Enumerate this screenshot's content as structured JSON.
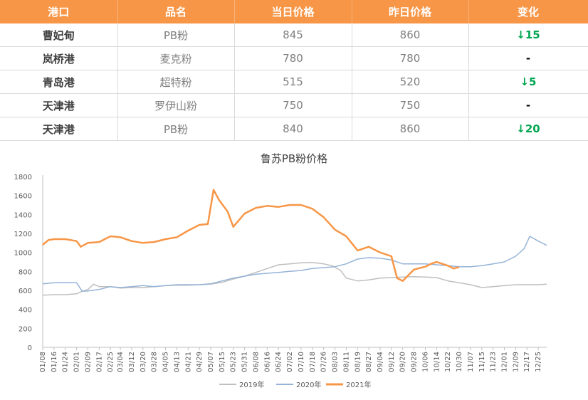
{
  "table": {
    "headers": [
      "港口",
      "品名",
      "当日价格",
      "昨日价格",
      "变化"
    ],
    "rows": [
      {
        "port": "曹妃甸",
        "product": "PB粉",
        "today": "845",
        "yesterday": "860",
        "change": "↓15"
      },
      {
        "port": "岚桥港",
        "product": "麦克粉",
        "today": "780",
        "yesterday": "780",
        "change": "-"
      },
      {
        "port": "青岛港",
        "product": "超特粉",
        "today": "515",
        "yesterday": "520",
        "change": "↓5"
      },
      {
        "port": "天津港",
        "product": "罗伊山粉",
        "today": "750",
        "yesterday": "750",
        "change": "-"
      },
      {
        "port": "天津港",
        "product": "PB粉",
        "today": "840",
        "yesterday": "860",
        "change": "↓20"
      }
    ]
  },
  "colors": {
    "header_bg": "#F79646",
    "down": "#00A651",
    "series_2019": "#BFBFBF",
    "series_2020": "#95B3D7",
    "series_2021": "#F79646"
  },
  "chart_data": {
    "type": "line",
    "title": "鲁苏PB粉价格",
    "xlabel": "",
    "ylabel": "",
    "ylim": [
      0,
      1800
    ],
    "yticks": [
      0,
      200,
      400,
      600,
      800,
      1000,
      1200,
      1400,
      1600,
      1800
    ],
    "grid": false,
    "legend_position": "bottom",
    "x_range": [
      "01/08",
      "12/31"
    ],
    "x_tick_labels": [
      "01/08",
      "01/16",
      "01/24",
      "02/01",
      "02/09",
      "02/17",
      "02/25",
      "03/04",
      "03/12",
      "03/20",
      "03/28",
      "04/05",
      "04/13",
      "04/21",
      "04/29",
      "05/07",
      "05/15",
      "05/23",
      "05/31",
      "06/08",
      "06/16",
      "06/24",
      "07/02",
      "07/10",
      "07/18",
      "07/26",
      "08/03",
      "08/11",
      "08/19",
      "08/27",
      "09/04",
      "09/12",
      "09/20",
      "09/28",
      "10/06",
      "10/14",
      "10/22",
      "10/30",
      "11/07",
      "11/15",
      "11/23",
      "12/01",
      "12/09",
      "12/17",
      "12/25"
    ],
    "series": [
      {
        "name": "2019年",
        "points": [
          [
            "01/08",
            550
          ],
          [
            "01/16",
            555
          ],
          [
            "01/24",
            555
          ],
          [
            "02/01",
            565
          ],
          [
            "02/05",
            590
          ],
          [
            "02/09",
            610
          ],
          [
            "02/13",
            665
          ],
          [
            "02/17",
            640
          ],
          [
            "02/25",
            640
          ],
          [
            "03/04",
            625
          ],
          [
            "03/12",
            630
          ],
          [
            "03/20",
            630
          ],
          [
            "03/28",
            640
          ],
          [
            "04/05",
            650
          ],
          [
            "04/13",
            655
          ],
          [
            "04/21",
            655
          ],
          [
            "04/29",
            660
          ],
          [
            "05/07",
            665
          ],
          [
            "05/15",
            685
          ],
          [
            "05/23",
            720
          ],
          [
            "05/31",
            750
          ],
          [
            "06/08",
            790
          ],
          [
            "06/16",
            830
          ],
          [
            "06/24",
            870
          ],
          [
            "07/02",
            880
          ],
          [
            "07/10",
            890
          ],
          [
            "07/18",
            895
          ],
          [
            "07/26",
            880
          ],
          [
            "08/01",
            860
          ],
          [
            "08/07",
            810
          ],
          [
            "08/11",
            730
          ],
          [
            "08/19",
            700
          ],
          [
            "08/27",
            710
          ],
          [
            "09/04",
            730
          ],
          [
            "09/12",
            735
          ],
          [
            "09/20",
            740
          ],
          [
            "09/28",
            745
          ],
          [
            "10/06",
            740
          ],
          [
            "10/14",
            735
          ],
          [
            "10/22",
            700
          ],
          [
            "10/30",
            680
          ],
          [
            "11/07",
            660
          ],
          [
            "11/15",
            630
          ],
          [
            "11/23",
            640
          ],
          [
            "12/01",
            650
          ],
          [
            "12/09",
            660
          ],
          [
            "12/17",
            660
          ],
          [
            "12/25",
            660
          ],
          [
            "12/31",
            665
          ]
        ]
      },
      {
        "name": "2020年",
        "points": [
          [
            "01/08",
            670
          ],
          [
            "01/16",
            680
          ],
          [
            "01/24",
            680
          ],
          [
            "02/01",
            680
          ],
          [
            "02/05",
            590
          ],
          [
            "02/09",
            595
          ],
          [
            "02/17",
            610
          ],
          [
            "02/25",
            640
          ],
          [
            "03/04",
            630
          ],
          [
            "03/12",
            640
          ],
          [
            "03/20",
            650
          ],
          [
            "03/28",
            640
          ],
          [
            "04/05",
            650
          ],
          [
            "04/13",
            660
          ],
          [
            "04/21",
            660
          ],
          [
            "04/29",
            660
          ],
          [
            "05/07",
            670
          ],
          [
            "05/15",
            700
          ],
          [
            "05/23",
            730
          ],
          [
            "05/31",
            750
          ],
          [
            "06/08",
            770
          ],
          [
            "06/16",
            780
          ],
          [
            "06/24",
            790
          ],
          [
            "07/02",
            800
          ],
          [
            "07/10",
            810
          ],
          [
            "07/18",
            830
          ],
          [
            "07/26",
            840
          ],
          [
            "08/03",
            850
          ],
          [
            "08/11",
            880
          ],
          [
            "08/19",
            930
          ],
          [
            "08/27",
            945
          ],
          [
            "09/04",
            940
          ],
          [
            "09/12",
            920
          ],
          [
            "09/20",
            880
          ],
          [
            "09/28",
            880
          ],
          [
            "10/06",
            880
          ],
          [
            "10/14",
            870
          ],
          [
            "10/22",
            860
          ],
          [
            "10/30",
            850
          ],
          [
            "11/07",
            850
          ],
          [
            "11/15",
            860
          ],
          [
            "11/23",
            880
          ],
          [
            "12/01",
            900
          ],
          [
            "12/09",
            960
          ],
          [
            "12/15",
            1040
          ],
          [
            "12/19",
            1170
          ],
          [
            "12/25",
            1120
          ],
          [
            "12/31",
            1075
          ]
        ]
      },
      {
        "name": "2021年",
        "points": [
          [
            "01/08",
            1080
          ],
          [
            "01/12",
            1130
          ],
          [
            "01/16",
            1140
          ],
          [
            "01/24",
            1140
          ],
          [
            "02/01",
            1120
          ],
          [
            "02/04",
            1060
          ],
          [
            "02/09",
            1100
          ],
          [
            "02/17",
            1110
          ],
          [
            "02/25",
            1170
          ],
          [
            "03/04",
            1160
          ],
          [
            "03/12",
            1120
          ],
          [
            "03/20",
            1100
          ],
          [
            "03/28",
            1110
          ],
          [
            "04/05",
            1140
          ],
          [
            "04/13",
            1160
          ],
          [
            "04/21",
            1230
          ],
          [
            "04/29",
            1290
          ],
          [
            "05/05",
            1300
          ],
          [
            "05/09",
            1660
          ],
          [
            "05/13",
            1550
          ],
          [
            "05/15",
            1510
          ],
          [
            "05/19",
            1430
          ],
          [
            "05/23",
            1270
          ],
          [
            "05/31",
            1410
          ],
          [
            "06/08",
            1470
          ],
          [
            "06/16",
            1490
          ],
          [
            "06/24",
            1480
          ],
          [
            "07/02",
            1500
          ],
          [
            "07/10",
            1500
          ],
          [
            "07/18",
            1460
          ],
          [
            "07/26",
            1370
          ],
          [
            "08/03",
            1240
          ],
          [
            "08/11",
            1170
          ],
          [
            "08/19",
            1020
          ],
          [
            "08/27",
            1060
          ],
          [
            "09/04",
            1000
          ],
          [
            "09/12",
            960
          ],
          [
            "09/16",
            730
          ],
          [
            "09/20",
            700
          ],
          [
            "09/24",
            760
          ],
          [
            "09/28",
            820
          ],
          [
            "10/06",
            850
          ],
          [
            "10/10",
            880
          ],
          [
            "10/14",
            900
          ],
          [
            "10/22",
            860
          ],
          [
            "10/26",
            830
          ],
          [
            "10/30",
            845
          ]
        ]
      }
    ]
  }
}
